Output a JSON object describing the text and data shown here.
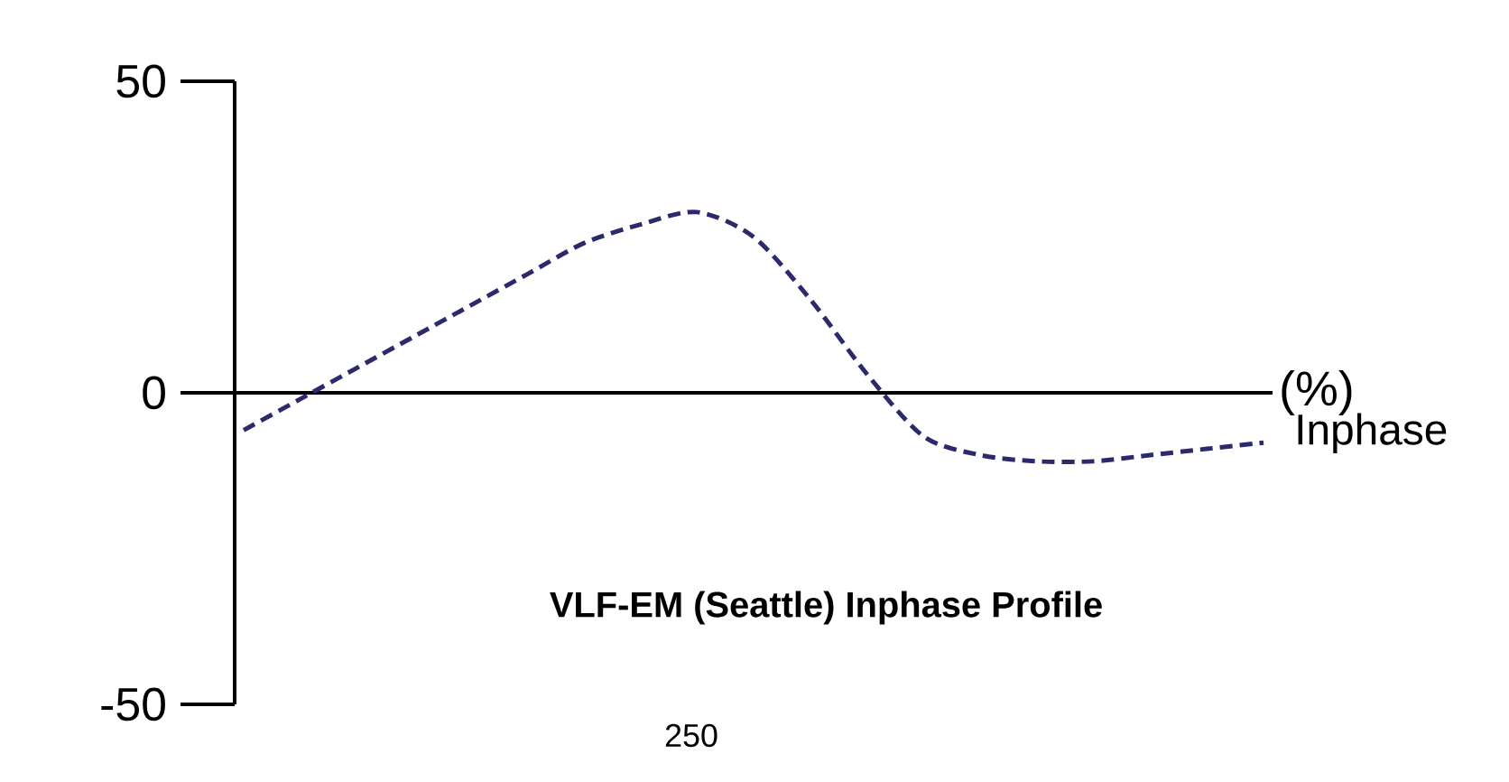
{
  "chart_data": {
    "type": "line",
    "title": "VLF-EM (Seattle) Inphase Profile",
    "ylabel": "(%)",
    "annotations": [
      "Inphase",
      "250"
    ],
    "categories": [
      null,
      null,
      null,
      null,
      null,
      null,
      null,
      null,
      null,
      null,
      null,
      null,
      null,
      null,
      null,
      null,
      null,
      null,
      null
    ],
    "series": [
      {
        "color": "#2b2a6b",
        "line_style": "dashed",
        "values": [
          -6,
          -1,
          4,
          9,
          14,
          19,
          24,
          27,
          29,
          25,
          15,
          3,
          -7,
          -10,
          -11,
          -11,
          -10,
          -9,
          -8
        ]
      }
    ],
    "ylim": [
      -50,
      50
    ],
    "yticks": [
      -50,
      0,
      50
    ],
    "ref_lines": [
      {
        "axis": "y",
        "value": 0,
        "color": "#000000"
      }
    ],
    "grid": false,
    "marker": "none"
  }
}
